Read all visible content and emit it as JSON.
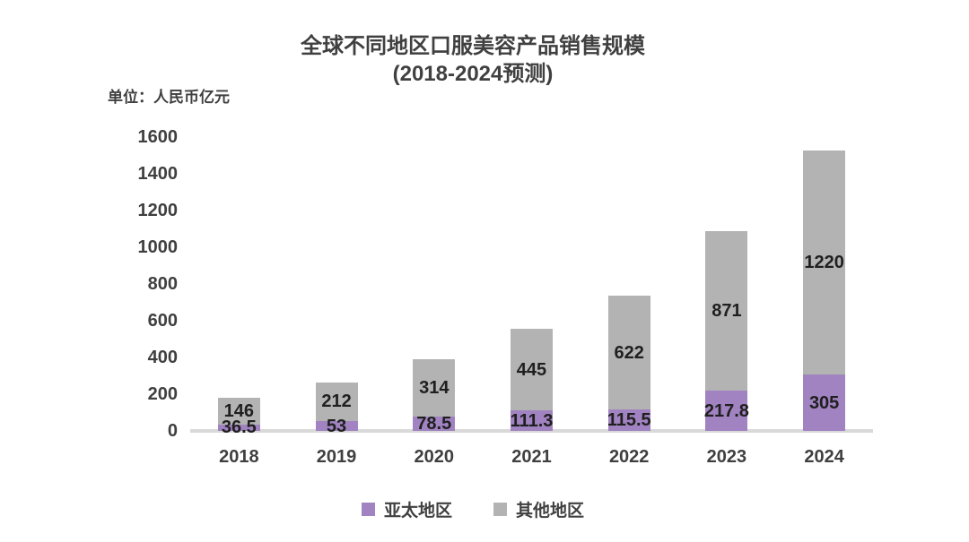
{
  "title": {
    "line1": "全球不同地区口服美容产品销售规模",
    "line2": "(2018-2024预测)"
  },
  "unit_label": "单位：人民币亿元",
  "chart_data": {
    "type": "bar",
    "stacked": true,
    "title": "全球不同地区口服美容产品销售规模(2018-2024预测)",
    "ylabel": "单位：人民币亿元",
    "categories": [
      "2018",
      "2019",
      "2020",
      "2021",
      "2022",
      "2023",
      "2024"
    ],
    "series": [
      {
        "name": "亚太地区",
        "color": "#a083c0",
        "values": [
          36.5,
          53,
          78.5,
          111.3,
          115.5,
          217.8,
          305
        ]
      },
      {
        "name": "其他地区",
        "color": "#b3b3b3",
        "values": [
          146,
          212,
          314,
          445,
          622,
          871,
          1220
        ]
      }
    ],
    "ylim": [
      0,
      1600
    ],
    "yticks": [
      0,
      200,
      400,
      600,
      800,
      1000,
      1200,
      1400,
      1600
    ],
    "grid": false,
    "data_labels": true,
    "legend_position": "bottom",
    "axis_line_color": "#d9d9d9",
    "label_color": "#1f1f1f"
  },
  "legend": {
    "items": [
      {
        "label": "亚太地区",
        "color": "#a083c0"
      },
      {
        "label": "其他地区",
        "color": "#b3b3b3"
      }
    ]
  }
}
